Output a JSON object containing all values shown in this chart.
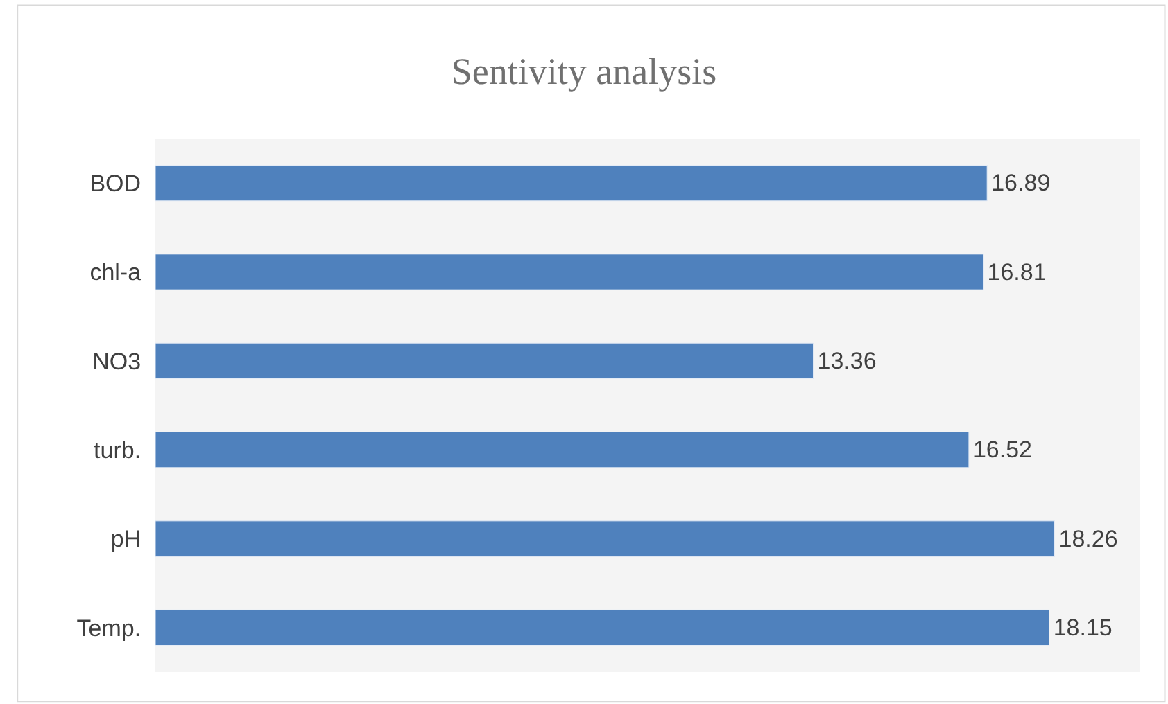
{
  "chart_data": {
    "type": "bar",
    "orientation": "horizontal",
    "title": "Sentivity analysis",
    "categories": [
      "BOD",
      "chl-a",
      "NO3",
      "turb.",
      "pH",
      "Temp."
    ],
    "values": [
      16.89,
      16.81,
      13.36,
      16.52,
      18.26,
      18.15
    ],
    "color": "#4f81bd",
    "xlim": [
      0,
      20
    ],
    "data_labels": true,
    "tick_labels": "y"
  }
}
